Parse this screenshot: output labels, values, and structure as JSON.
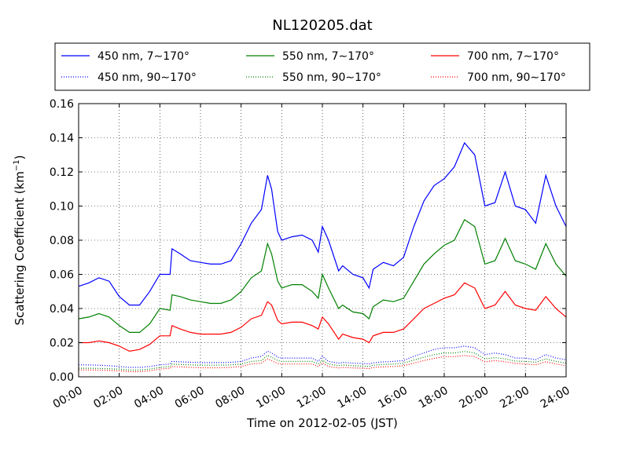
{
  "chart_data": {
    "type": "line",
    "title": "NL120205.dat",
    "xlabel": "Time on 2012-02-05 (JST)",
    "ylabel": "Scattering Coefficient (km",
    "ylabel_sup": "−1",
    "ylabel_close": ")",
    "xlim": [
      "00:00",
      "24:00"
    ],
    "ylim": [
      0,
      0.16
    ],
    "x_ticks": [
      "00:00",
      "02:00",
      "04:00",
      "06:00",
      "08:00",
      "10:00",
      "12:00",
      "14:00",
      "16:00",
      "18:00",
      "20:00",
      "22:00",
      "24:00"
    ],
    "y_ticks": [
      "0.00",
      "0.02",
      "0.04",
      "0.06",
      "0.08",
      "0.10",
      "0.12",
      "0.14",
      "0.16"
    ],
    "y_tick_values": [
      0,
      0.02,
      0.04,
      0.06,
      0.08,
      0.1,
      0.12,
      0.14,
      0.16
    ],
    "grid": true,
    "legend_position": "top (above plot)",
    "x_hours": [
      0,
      0.5,
      1,
      1.5,
      2,
      2.5,
      3,
      3.5,
      4,
      4.5,
      4.6,
      5,
      5.5,
      6,
      6.5,
      7,
      7.5,
      8,
      8.5,
      9,
      9.3,
      9.5,
      9.8,
      10,
      10.5,
      11,
      11.5,
      11.8,
      12,
      12.3,
      12.8,
      13,
      13.5,
      14,
      14.3,
      14.5,
      15,
      15.5,
      16,
      16.5,
      17,
      17.5,
      18,
      18.5,
      19,
      19.5,
      20,
      20.5,
      21,
      21.5,
      22,
      22.5,
      23,
      23.5,
      24
    ],
    "series": [
      {
        "name": "450 nm, 7∼170°",
        "color": "#0000ff",
        "style": "solid",
        "values": [
          0.053,
          0.055,
          0.058,
          0.056,
          0.047,
          0.042,
          0.042,
          0.05,
          0.06,
          0.06,
          0.075,
          0.072,
          0.068,
          0.067,
          0.066,
          0.066,
          0.068,
          0.078,
          0.09,
          0.098,
          0.118,
          0.11,
          0.085,
          0.08,
          0.082,
          0.083,
          0.08,
          0.073,
          0.088,
          0.08,
          0.062,
          0.065,
          0.06,
          0.058,
          0.052,
          0.063,
          0.067,
          0.065,
          0.07,
          0.088,
          0.103,
          0.112,
          0.116,
          0.123,
          0.137,
          0.13,
          0.1,
          0.102,
          0.12,
          0.1,
          0.098,
          0.09,
          0.118,
          0.1,
          0.088
        ]
      },
      {
        "name": "550 nm, 7∼170°",
        "color": "#008000",
        "style": "solid",
        "values": [
          0.034,
          0.035,
          0.037,
          0.035,
          0.03,
          0.026,
          0.026,
          0.031,
          0.04,
          0.039,
          0.048,
          0.047,
          0.045,
          0.044,
          0.043,
          0.043,
          0.045,
          0.05,
          0.058,
          0.062,
          0.078,
          0.072,
          0.056,
          0.052,
          0.054,
          0.054,
          0.05,
          0.046,
          0.06,
          0.052,
          0.04,
          0.042,
          0.038,
          0.037,
          0.034,
          0.041,
          0.045,
          0.044,
          0.046,
          0.056,
          0.066,
          0.072,
          0.077,
          0.08,
          0.092,
          0.088,
          0.066,
          0.068,
          0.081,
          0.068,
          0.066,
          0.063,
          0.078,
          0.066,
          0.059
        ]
      },
      {
        "name": "700 nm, 7∼170°",
        "color": "#ff0000",
        "style": "solid",
        "values": [
          0.02,
          0.02,
          0.021,
          0.02,
          0.018,
          0.015,
          0.016,
          0.019,
          0.024,
          0.024,
          0.03,
          0.028,
          0.026,
          0.025,
          0.025,
          0.025,
          0.026,
          0.029,
          0.034,
          0.036,
          0.044,
          0.042,
          0.033,
          0.031,
          0.032,
          0.032,
          0.03,
          0.028,
          0.035,
          0.031,
          0.022,
          0.025,
          0.023,
          0.022,
          0.02,
          0.024,
          0.026,
          0.026,
          0.028,
          0.034,
          0.04,
          0.043,
          0.046,
          0.048,
          0.055,
          0.052,
          0.04,
          0.042,
          0.05,
          0.042,
          0.04,
          0.039,
          0.047,
          0.04,
          0.035
        ]
      },
      {
        "name": "450 nm, 90∼170°",
        "color": "#0000ff",
        "style": "dotted",
        "values": [
          0.007,
          0.007,
          0.0068,
          0.0065,
          0.006,
          0.0055,
          0.0055,
          0.006,
          0.007,
          0.0075,
          0.009,
          0.0088,
          0.0085,
          0.0083,
          0.0083,
          0.0083,
          0.0085,
          0.009,
          0.011,
          0.012,
          0.015,
          0.014,
          0.0115,
          0.011,
          0.011,
          0.011,
          0.011,
          0.009,
          0.012,
          0.009,
          0.008,
          0.0085,
          0.008,
          0.0078,
          0.0075,
          0.0082,
          0.0088,
          0.009,
          0.0095,
          0.012,
          0.014,
          0.016,
          0.017,
          0.017,
          0.018,
          0.017,
          0.013,
          0.014,
          0.013,
          0.011,
          0.011,
          0.01,
          0.013,
          0.011,
          0.01
        ]
      },
      {
        "name": "550 nm, 90∼170°",
        "color": "#008000",
        "style": "dotted",
        "values": [
          0.005,
          0.005,
          0.0049,
          0.0047,
          0.0045,
          0.004,
          0.004,
          0.0045,
          0.0055,
          0.006,
          0.0075,
          0.0072,
          0.007,
          0.0068,
          0.0068,
          0.0068,
          0.007,
          0.0075,
          0.009,
          0.0095,
          0.0125,
          0.0115,
          0.0095,
          0.009,
          0.009,
          0.009,
          0.009,
          0.0075,
          0.0098,
          0.0075,
          0.0065,
          0.007,
          0.0065,
          0.0063,
          0.006,
          0.0068,
          0.0072,
          0.0075,
          0.008,
          0.0098,
          0.0115,
          0.013,
          0.014,
          0.014,
          0.0148,
          0.014,
          0.0105,
          0.0112,
          0.0105,
          0.0092,
          0.009,
          0.0085,
          0.0105,
          0.009,
          0.008
        ]
      },
      {
        "name": "700 nm, 90∼170°",
        "color": "#ff0000",
        "style": "dotted",
        "values": [
          0.004,
          0.004,
          0.0039,
          0.0037,
          0.0035,
          0.003,
          0.003,
          0.0035,
          0.0045,
          0.005,
          0.006,
          0.0058,
          0.0055,
          0.0053,
          0.0053,
          0.0053,
          0.0055,
          0.006,
          0.0075,
          0.008,
          0.0105,
          0.0095,
          0.0078,
          0.0075,
          0.0075,
          0.0075,
          0.0075,
          0.006,
          0.0082,
          0.006,
          0.0052,
          0.0055,
          0.0052,
          0.005,
          0.0048,
          0.0055,
          0.0058,
          0.006,
          0.0065,
          0.008,
          0.0095,
          0.0108,
          0.0118,
          0.0118,
          0.0125,
          0.0118,
          0.0088,
          0.0095,
          0.0088,
          0.0078,
          0.0075,
          0.007,
          0.0088,
          0.0075,
          0.0065
        ]
      }
    ]
  }
}
